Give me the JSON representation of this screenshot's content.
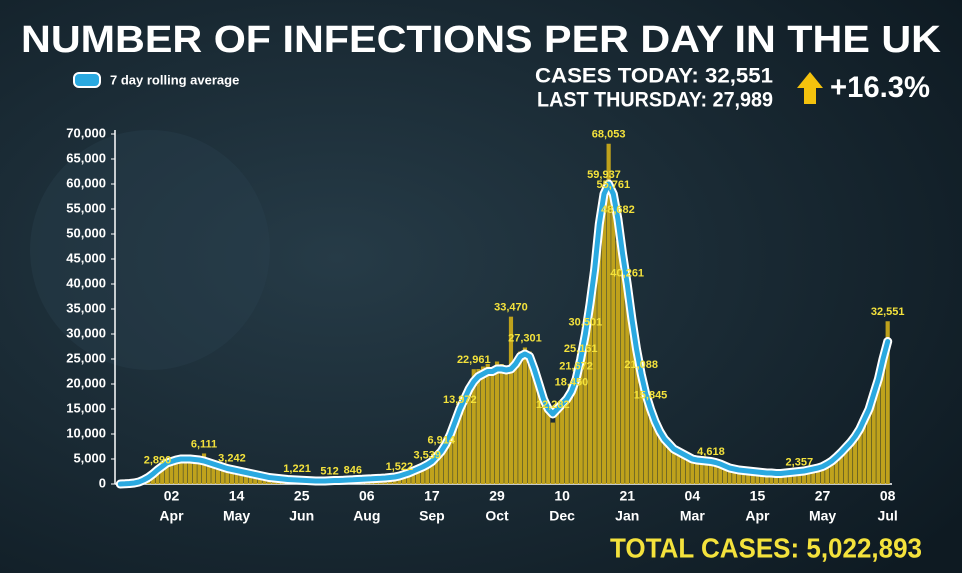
{
  "chart_data": {
    "type": "bar_line",
    "title": "NUMBER OF INFECTIONS PER DAY IN THE UK",
    "cases_today": "CASES TODAY: 32,551",
    "last_thursday": "LAST THURSDAY: 27,989",
    "change": "+16.3%",
    "total": "TOTAL CASES: 5,022,893",
    "ylim": [
      0,
      70000
    ],
    "yticks": [
      0,
      {
        "value": 5000,
        "label": "5,000"
      },
      {
        "value": 10000,
        "label": "10,000"
      },
      {
        "value": 15000,
        "label": "15,000"
      },
      {
        "value": 20000,
        "label": "20,000"
      },
      {
        "value": 25000,
        "label": "25,000"
      },
      {
        "value": 30000,
        "label": "30,000"
      },
      {
        "value": 35000,
        "label": "35,000"
      },
      {
        "value": 40000,
        "label": "40,000"
      },
      {
        "value": 45000,
        "label": "45,000"
      },
      {
        "value": 50000,
        "label": "50,000"
      },
      {
        "value": 55000,
        "label": "55,000"
      },
      {
        "value": 60000,
        "label": "60,000"
      },
      {
        "value": 65000,
        "label": "65,000"
      },
      {
        "value": 70000,
        "label": "70,000"
      }
    ],
    "categories": [
      null,
      null,
      null,
      null,
      null,
      null,
      null,
      null,
      null,
      null,
      null,
      [
        "02",
        "Apr"
      ],
      null,
      null,
      null,
      null,
      null,
      null,
      null,
      null,
      null,
      null,
      null,
      null,
      null,
      [
        "14",
        "May"
      ],
      null,
      null,
      null,
      null,
      null,
      null,
      null,
      null,
      null,
      null,
      null,
      null,
      null,
      [
        "25",
        "Jun"
      ],
      null,
      null,
      null,
      null,
      null,
      null,
      null,
      null,
      null,
      null,
      null,
      null,
      null,
      [
        "06",
        "Aug"
      ],
      null,
      null,
      null,
      null,
      null,
      null,
      null,
      null,
      null,
      null,
      null,
      null,
      null,
      [
        "17",
        "Sep"
      ],
      null,
      null,
      null,
      null,
      null,
      null,
      null,
      null,
      null,
      null,
      null,
      null,
      null,
      [
        "29",
        "Oct"
      ],
      null,
      null,
      null,
      null,
      null,
      null,
      null,
      null,
      null,
      null,
      null,
      null,
      null,
      [
        "10",
        "Dec"
      ],
      null,
      null,
      null,
      null,
      null,
      null,
      null,
      null,
      null,
      null,
      null,
      null,
      null,
      [
        "21",
        "Jan"
      ],
      null,
      null,
      null,
      null,
      null,
      null,
      null,
      null,
      null,
      null,
      null,
      null,
      null,
      [
        "04",
        "Mar"
      ],
      null,
      null,
      null,
      null,
      null,
      null,
      null,
      null,
      null,
      null,
      null,
      null,
      null,
      [
        "15",
        "Apr"
      ],
      null,
      null,
      null,
      null,
      null,
      null,
      null,
      null,
      null,
      null,
      null,
      null,
      null,
      [
        "27",
        "May"
      ],
      null,
      null,
      null,
      null,
      null,
      null,
      null,
      null,
      null,
      null,
      null,
      null,
      null,
      [
        "08",
        "Jul"
      ]
    ],
    "bars": {
      "color": "#bfa21c",
      "values": [
        0,
        40,
        120,
        250,
        500,
        900,
        1500,
        2100,
        2890,
        3700,
        4600,
        4800,
        5200,
        5300,
        5100,
        5400,
        4900,
        5000,
        6111,
        4500,
        4100,
        3900,
        3500,
        3300,
        3242,
        2800,
        2600,
        2400,
        2200,
        2000,
        1800,
        1600,
        1400,
        1250,
        1150,
        1050,
        950,
        900,
        1221,
        800,
        750,
        700,
        650,
        620,
        640,
        512,
        760,
        740,
        800,
        850,
        846,
        950,
        1000,
        1050,
        1100,
        1150,
        1200,
        1300,
        1350,
        1500,
        1522,
        2000,
        2400,
        2800,
        3200,
        3600,
        3539,
        4800,
        6000,
        6914,
        8500,
        10500,
        13000,
        13972,
        18000,
        20000,
        22961,
        23000,
        23500,
        24000,
        23000,
        24500,
        24000,
        23500,
        33470,
        25000,
        26500,
        27301,
        26500,
        24000,
        21000,
        18000,
        15500,
        12282,
        15500,
        16500,
        17500,
        18450,
        21672,
        25161,
        30501,
        38000,
        46000,
        55000,
        59937,
        68053,
        55761,
        48682,
        47000,
        40261,
        35000,
        28500,
        21088,
        19000,
        15845,
        13000,
        11000,
        9500,
        8500,
        7500,
        7000,
        6300,
        5800,
        5300,
        5000,
        4900,
        4800,
        4618,
        4500,
        4200,
        3800,
        3400,
        3200,
        3000,
        2900,
        2800,
        2700,
        2600,
        2500,
        2400,
        2350,
        2300,
        2250,
        2300,
        2400,
        2500,
        2357,
        2700,
        2900,
        3200,
        3400,
        3700,
        4200,
        4900,
        5700,
        6600,
        7700,
        8800,
        10000,
        11500,
        13800,
        16000,
        19000,
        22000,
        27000,
        32551
      ],
      "value_labels": [
        null,
        null,
        null,
        null,
        null,
        null,
        null,
        null,
        "2,890",
        null,
        null,
        null,
        null,
        null,
        null,
        null,
        null,
        null,
        "6,111",
        null,
        null,
        null,
        null,
        null,
        "3,242",
        null,
        null,
        null,
        null,
        null,
        null,
        null,
        null,
        null,
        null,
        null,
        null,
        null,
        "1,221",
        null,
        null,
        null,
        null,
        null,
        null,
        "512",
        null,
        null,
        null,
        null,
        "846",
        null,
        null,
        null,
        null,
        null,
        null,
        null,
        null,
        null,
        "1,522",
        null,
        null,
        null,
        null,
        null,
        "3,539",
        null,
        null,
        "6,914",
        null,
        null,
        null,
        "13,972",
        null,
        null,
        "22,961",
        null,
        null,
        null,
        null,
        null,
        null,
        null,
        "33,470",
        null,
        null,
        "27,301",
        null,
        null,
        null,
        null,
        null,
        "12,282",
        null,
        null,
        null,
        "18,450",
        "21,672",
        "25,161",
        "30,501",
        null,
        null,
        null,
        "59,937",
        "68,053",
        "55,761",
        "48,682",
        null,
        "40,261",
        null,
        null,
        "21,088",
        null,
        "15,845",
        null,
        null,
        null,
        null,
        null,
        null,
        null,
        null,
        null,
        null,
        null,
        null,
        "4,618",
        null,
        null,
        null,
        null,
        null,
        null,
        null,
        null,
        null,
        null,
        null,
        null,
        null,
        null,
        null,
        null,
        null,
        null,
        "2,357",
        null,
        null,
        null,
        null,
        null,
        null,
        null,
        null,
        null,
        null,
        null,
        null,
        null,
        null,
        null,
        null,
        null,
        null,
        "32,551"
      ]
    },
    "series": [
      {
        "name": "7 day rolling average",
        "color": "#2aa9e0",
        "values": [
          0,
          50,
          100,
          200,
          400,
          800,
          1300,
          2000,
          2800,
          3500,
          4200,
          4500,
          4800,
          5000,
          5000,
          5000,
          4900,
          4800,
          4600,
          4300,
          4000,
          3700,
          3400,
          3100,
          2900,
          2700,
          2500,
          2300,
          2100,
          1900,
          1700,
          1500,
          1300,
          1200,
          1100,
          1000,
          900,
          850,
          800,
          750,
          700,
          650,
          600,
          600,
          600,
          650,
          700,
          700,
          750,
          800,
          850,
          900,
          950,
          1000,
          1050,
          1100,
          1150,
          1200,
          1300,
          1400,
          1600,
          1900,
          2200,
          2600,
          3000,
          3400,
          3900,
          4500,
          5500,
          6500,
          8000,
          10000,
          12500,
          15000,
          17000,
          19000,
          20500,
          21500,
          22000,
          22500,
          22500,
          23000,
          23000,
          22800,
          23000,
          24000,
          25500,
          26000,
          25500,
          23000,
          20000,
          17000,
          15000,
          14000,
          15000,
          16000,
          17000,
          18500,
          21000,
          25000,
          30000,
          36000,
          43000,
          52000,
          58000,
          60000,
          58000,
          53000,
          46000,
          40000,
          33000,
          27000,
          22000,
          18000,
          15000,
          12500,
          10500,
          9000,
          8000,
          7000,
          6500,
          6000,
          5500,
          5000,
          4800,
          4700,
          4600,
          4500,
          4300,
          4000,
          3600,
          3200,
          3000,
          2800,
          2700,
          2600,
          2500,
          2400,
          2300,
          2200,
          2200,
          2100,
          2100,
          2200,
          2300,
          2400,
          2500,
          2600,
          2800,
          3000,
          3200,
          3500,
          4000,
          4600,
          5400,
          6300,
          7300,
          8300,
          9500,
          11000,
          13000,
          15000,
          18000,
          21000,
          25000,
          28500
        ]
      }
    ]
  }
}
